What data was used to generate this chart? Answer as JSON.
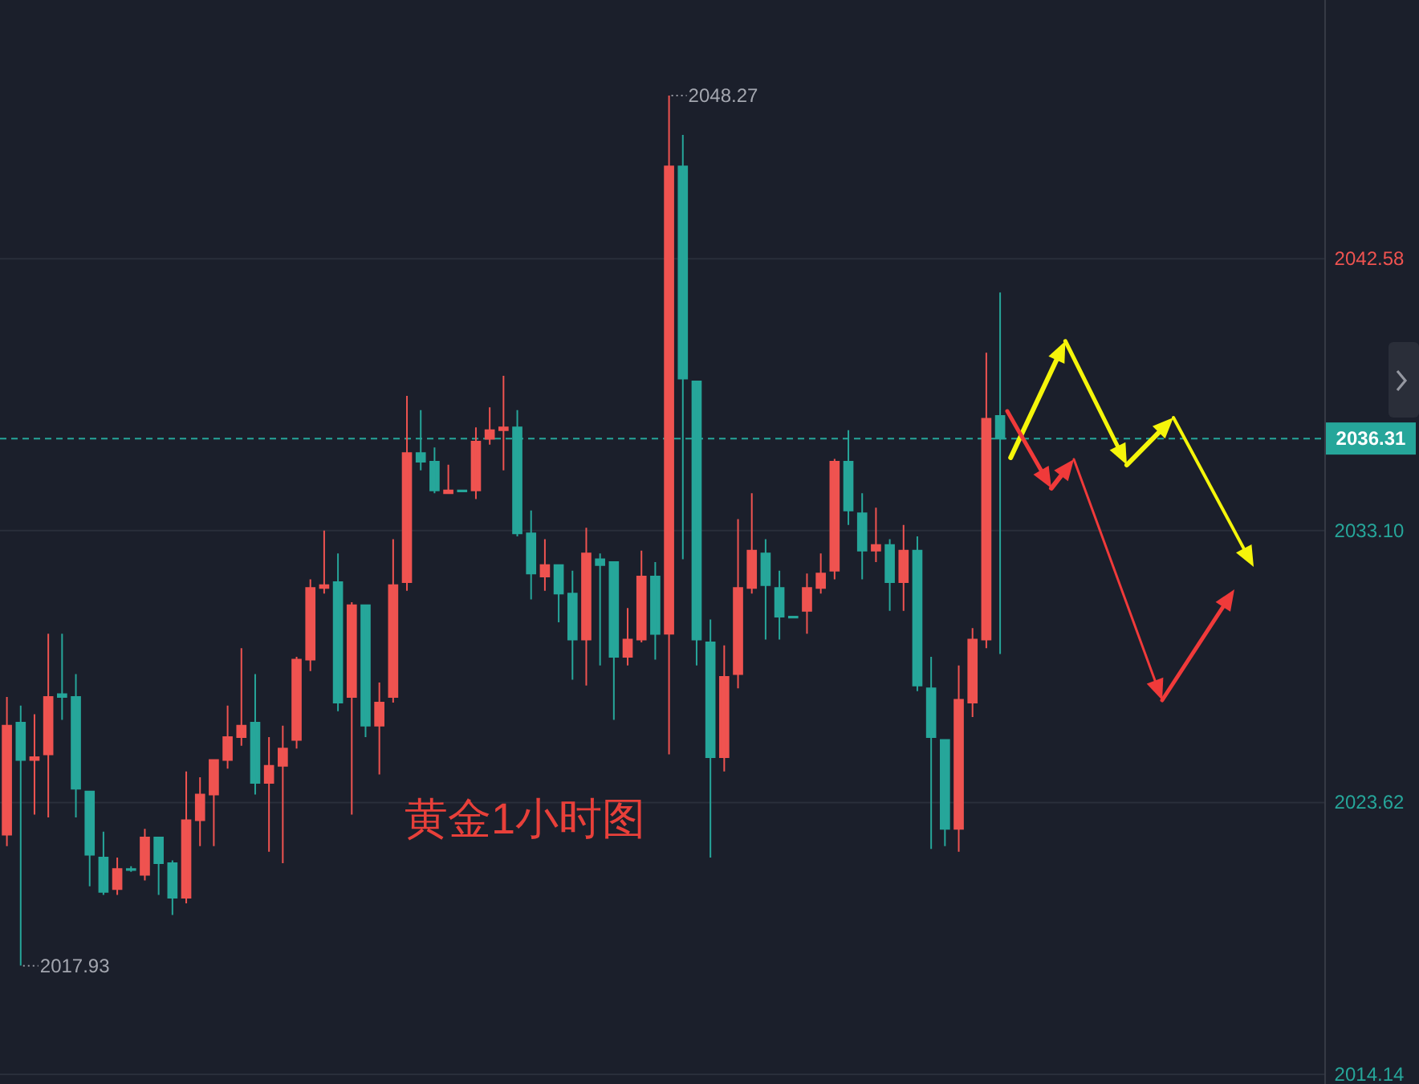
{
  "chart_data": {
    "type": "candlestick",
    "title": "黄金1小时图",
    "categories": [
      null,
      null,
      null,
      null,
      null,
      null,
      null,
      null,
      null,
      null,
      null,
      null,
      null,
      null,
      null,
      null,
      null,
      null,
      null,
      null,
      null,
      null,
      null,
      null,
      null,
      null,
      null,
      null,
      null,
      null,
      null,
      null,
      null,
      null,
      null,
      null,
      null,
      null,
      null,
      null,
      null,
      null,
      null,
      null,
      null,
      null,
      null,
      null,
      null,
      null,
      null,
      null,
      null,
      null,
      null,
      null,
      null,
      null,
      null,
      null,
      null,
      null,
      null,
      null,
      null,
      null,
      null,
      null,
      null,
      null,
      null,
      null,
      null,
      null,
      null,
      null,
      null,
      null,
      null,
      null,
      null,
      null,
      null,
      null,
      null,
      null,
      null,
      null,
      null,
      null,
      null,
      null,
      null,
      null,
      null,
      null
    ],
    "ohlc": [
      [
        2022.5,
        2027.3,
        2022.1,
        2026.3
      ],
      [
        2026.4,
        2027.0,
        2017.93,
        2025.1
      ],
      [
        2025.1,
        2026.7,
        2023.2,
        2025.2
      ],
      [
        2025.3,
        2029.5,
        2023.1,
        2027.3
      ],
      [
        2027.4,
        2029.5,
        2026.5,
        2027.3
      ],
      [
        2027.3,
        2028.1,
        2023.1,
        2024.1
      ],
      [
        2024.0,
        2024.0,
        2020.7,
        2021.8
      ],
      [
        2021.7,
        2022.6,
        2020.4,
        2020.5
      ],
      [
        2020.6,
        2021.7,
        2020.4,
        2021.3
      ],
      [
        2021.3,
        2021.4,
        2021.2,
        2021.3
      ],
      [
        2021.1,
        2022.7,
        2020.9,
        2022.4
      ],
      [
        2022.4,
        2022.4,
        2020.4,
        2021.5
      ],
      [
        2021.5,
        2021.6,
        2019.7,
        2020.3
      ],
      [
        2020.3,
        2024.7,
        2020.1,
        2023.0
      ],
      [
        2023.0,
        2024.5,
        2022.1,
        2023.9
      ],
      [
        2023.9,
        2025.1,
        2022.1,
        2025.1
      ],
      [
        2025.1,
        2027.0,
        2024.8,
        2025.9
      ],
      [
        2025.9,
        2029.0,
        2025.6,
        2026.3
      ],
      [
        2026.4,
        2028.1,
        2023.9,
        2024.3
      ],
      [
        2024.3,
        2025.9,
        2021.9,
        2024.9
      ],
      [
        2024.9,
        2026.3,
        2021.5,
        2025.5
      ],
      [
        2025.8,
        2028.7,
        2025.5,
        2028.6
      ],
      [
        2028.6,
        2031.4,
        2028.2,
        2031.1
      ],
      [
        2031.1,
        2033.1,
        2030.9,
        2031.2
      ],
      [
        2031.3,
        2032.3,
        2026.8,
        2027.1
      ],
      [
        2027.3,
        2030.6,
        2023.2,
        2030.5
      ],
      [
        2030.5,
        2030.5,
        2025.9,
        2026.3
      ],
      [
        2026.3,
        2027.8,
        2024.6,
        2027.1
      ],
      [
        2027.3,
        2032.8,
        2027.1,
        2031.2
      ],
      [
        2031.3,
        2037.8,
        2031.0,
        2035.8
      ],
      [
        2035.8,
        2037.3,
        2035.2,
        2035.5
      ],
      [
        2035.5,
        2036.0,
        2034.4,
        2034.5
      ],
      [
        2034.4,
        2035.4,
        2034.4,
        2034.5
      ],
      [
        2034.5,
        2034.5,
        2034.5,
        2034.5
      ],
      [
        2034.5,
        2036.7,
        2034.2,
        2036.2
      ],
      [
        2036.3,
        2037.4,
        2036.1,
        2036.6
      ],
      [
        2036.6,
        2038.5,
        2035.2,
        2036.7
      ],
      [
        2036.7,
        2037.3,
        2032.9,
        2033.0
      ],
      [
        2033.0,
        2033.8,
        2030.7,
        2031.6
      ],
      [
        2031.5,
        2032.8,
        2031.0,
        2031.9
      ],
      [
        2031.9,
        2031.9,
        2029.9,
        2030.9
      ],
      [
        2030.9,
        2031.7,
        2027.9,
        2029.3
      ],
      [
        2029.3,
        2033.2,
        2027.7,
        2032.3
      ],
      [
        2032.1,
        2032.3,
        2028.4,
        2031.9
      ],
      [
        2032.0,
        2032.0,
        2026.5,
        2028.7
      ],
      [
        2028.7,
        2030.4,
        2028.4,
        2029.3
      ],
      [
        2029.3,
        2032.4,
        2029.2,
        2031.5
      ],
      [
        2031.5,
        2032.0,
        2028.6,
        2029.5
      ],
      [
        2029.5,
        2048.27,
        2025.3,
        2045.8
      ],
      [
        2045.8,
        2046.9,
        2032.1,
        2038.4
      ],
      [
        2038.3,
        2038.3,
        2028.4,
        2029.3
      ],
      [
        2029.2,
        2030.0,
        2021.7,
        2025.2
      ],
      [
        2025.2,
        2029.1,
        2024.7,
        2028.0
      ],
      [
        2028.1,
        2033.5,
        2027.6,
        2031.1
      ],
      [
        2031.1,
        2034.4,
        2030.9,
        2032.4
      ],
      [
        2032.3,
        2032.8,
        2029.3,
        2031.2
      ],
      [
        2031.1,
        2031.7,
        2029.3,
        2030.1
      ],
      [
        2030.1,
        2030.1,
        2030.1,
        2030.1
      ],
      [
        2030.3,
        2031.6,
        2029.5,
        2031.1
      ],
      [
        2031.1,
        2032.3,
        2030.9,
        2031.6
      ],
      [
        2031.7,
        2035.6,
        2031.4,
        2035.5
      ],
      [
        2035.5,
        2036.6,
        2033.3,
        2033.8
      ],
      [
        2033.7,
        2034.4,
        2031.4,
        2032.4
      ],
      [
        2032.4,
        2033.9,
        2032.0,
        2032.6
      ],
      [
        2032.6,
        2032.8,
        2030.3,
        2031.3
      ],
      [
        2031.3,
        2033.3,
        2030.3,
        2032.4
      ],
      [
        2032.4,
        2032.9,
        2027.5,
        2027.7
      ],
      [
        2027.6,
        2028.7,
        2022.0,
        2025.9
      ],
      [
        2025.8,
        2025.8,
        2022.1,
        2022.7
      ],
      [
        2022.7,
        2028.4,
        2021.9,
        2027.2
      ],
      [
        2027.1,
        2029.7,
        2026.6,
        2029.3
      ],
      [
        2029.3,
        2039.3,
        2029.0,
        2037.0
      ],
      [
        2037.1,
        2041.4,
        2028.8,
        2036.31
      ],
      null,
      null,
      null,
      null,
      null,
      null,
      null,
      null,
      null,
      null,
      null,
      null,
      null,
      null,
      null,
      null,
      null,
      null,
      null,
      null,
      null,
      null,
      null
    ],
    "colors": [
      "#ef5350",
      "#26a69a",
      "#ef5350",
      "#ef5350",
      "#26a69a",
      "#26a69a",
      "#26a69a",
      "#26a69a",
      "#ef5350",
      "#26a69a",
      "#ef5350",
      "#26a69a",
      "#26a69a",
      "#ef5350",
      "#ef5350",
      "#ef5350",
      "#ef5350",
      "#ef5350",
      "#26a69a",
      "#ef5350",
      "#ef5350",
      "#ef5350",
      "#ef5350",
      "#ef5350",
      "#26a69a",
      "#ef5350",
      "#26a69a",
      "#ef5350",
      "#ef5350",
      "#ef5350",
      "#26a69a",
      "#26a69a",
      "#ef5350",
      "#26a69a",
      "#ef5350",
      "#ef5350",
      "#ef5350",
      "#26a69a",
      "#26a69a",
      "#ef5350",
      "#26a69a",
      "#26a69a",
      "#ef5350",
      "#26a69a",
      "#26a69a",
      "#ef5350",
      "#ef5350",
      "#26a69a",
      "#ef5350",
      "#26a69a",
      "#26a69a",
      "#26a69a",
      "#ef5350",
      "#ef5350",
      "#ef5350",
      "#26a69a",
      "#26a69a",
      "#26a69a",
      "#ef5350",
      "#ef5350",
      "#ef5350",
      "#26a69a",
      "#26a69a",
      "#ef5350",
      "#26a69a",
      "#ef5350",
      "#26a69a",
      "#26a69a",
      "#26a69a",
      "#ef5350",
      "#ef5350",
      "#ef5350",
      "#26a69a",
      null,
      null,
      null,
      null,
      null,
      null,
      null,
      null,
      null,
      null,
      null,
      null,
      null,
      null,
      null,
      null,
      null,
      null,
      null,
      null,
      null,
      null,
      null
    ],
    "ylim": [
      2014.14,
      2051.6
    ],
    "yticks": [
      2014.14,
      2023.62,
      {
        "value": 2033.1,
        "label": "2033.10"
      },
      2042.58
    ],
    "grid": "y",
    "tick_labels": "y",
    "ref_lines": [
      {
        "axis": "y",
        "value": 2036.31,
        "label": "2036.31",
        "color": "#26a69a",
        "line_style": "dashed"
      }
    ],
    "annotations": [
      "2048.27",
      "2017.93"
    ]
  }
}
